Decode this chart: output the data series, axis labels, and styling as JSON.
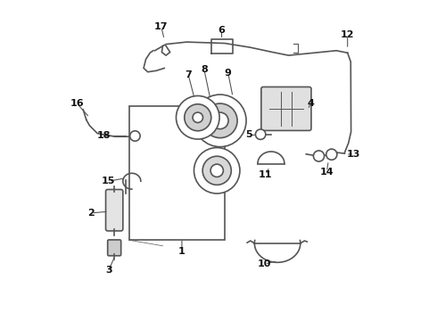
{
  "bg_color": "#ffffff",
  "line_color": "#555555",
  "label_color": "#111111",
  "label_positions": {
    "1": [
      0.385,
      0.215,
      0.385,
      0.255
    ],
    "2": [
      0.1,
      0.335,
      0.155,
      0.34
    ],
    "3": [
      0.155,
      0.155,
      0.175,
      0.2
    ],
    "4": [
      0.79,
      0.68,
      0.78,
      0.66
    ],
    "5": [
      0.595,
      0.58,
      0.628,
      0.58
    ],
    "6": [
      0.51,
      0.91,
      0.51,
      0.88
    ],
    "7": [
      0.405,
      0.77,
      0.435,
      0.655
    ],
    "8": [
      0.455,
      0.785,
      0.475,
      0.69
    ],
    "9": [
      0.53,
      0.775,
      0.545,
      0.7
    ],
    "10": [
      0.645,
      0.175,
      0.685,
      0.185
    ],
    "11": [
      0.648,
      0.455,
      0.66,
      0.48
    ],
    "12": [
      0.905,
      0.895,
      0.905,
      0.85
    ],
    "13": [
      0.925,
      0.52,
      0.9,
      0.52
    ],
    "14": [
      0.84,
      0.465,
      0.845,
      0.5
    ],
    "15": [
      0.155,
      0.435,
      0.21,
      0.445
    ],
    "16": [
      0.055,
      0.68,
      0.095,
      0.635
    ],
    "17": [
      0.32,
      0.92,
      0.33,
      0.88
    ],
    "18": [
      0.14,
      0.577,
      0.218,
      0.577
    ]
  }
}
